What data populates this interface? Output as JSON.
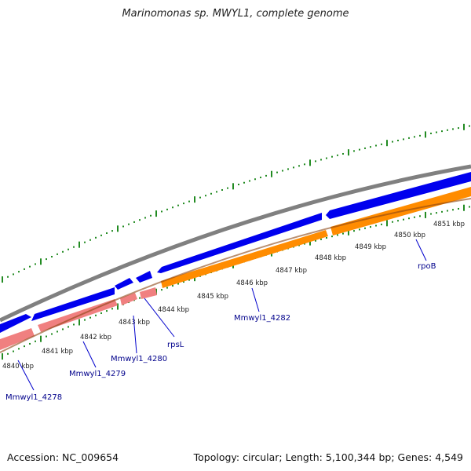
{
  "title": "Marinomonas sp. MWYL1, complete genome",
  "footer": {
    "accession": "Accession: NC_009654",
    "stats": "Topology: circular; Length: 5,100,344 bp; Genes: 4,549"
  },
  "colors": {
    "backbone": "#808080",
    "forward_cds": "#0000ee",
    "reverse_cds": "#f08080",
    "rrna_orange": "#ff8c00",
    "gc_ticks": "#228b22",
    "gene_label": "#00008b",
    "kbp_label": "#222222"
  },
  "kbp_ticks": [
    {
      "label": "4840 kbp"
    },
    {
      "label": "4841 kbp"
    },
    {
      "label": "4842 kbp"
    },
    {
      "label": "4843 kbp"
    },
    {
      "label": "4844 kbp"
    },
    {
      "label": "4845 kbp"
    },
    {
      "label": "4846 kbp"
    },
    {
      "label": "4847 kbp"
    },
    {
      "label": "4848 kbp"
    },
    {
      "label": "4849 kbp"
    },
    {
      "label": "4850 kbp"
    },
    {
      "label": "4851 kbp"
    }
  ],
  "genes": [
    {
      "name": "Mmwyl1_4278"
    },
    {
      "name": "Mmwyl1_4279"
    },
    {
      "name": "Mmwyl1_4280"
    },
    {
      "name": "rpsL"
    },
    {
      "name": "Mmwyl1_4282"
    },
    {
      "name": "rpoB"
    }
  ]
}
